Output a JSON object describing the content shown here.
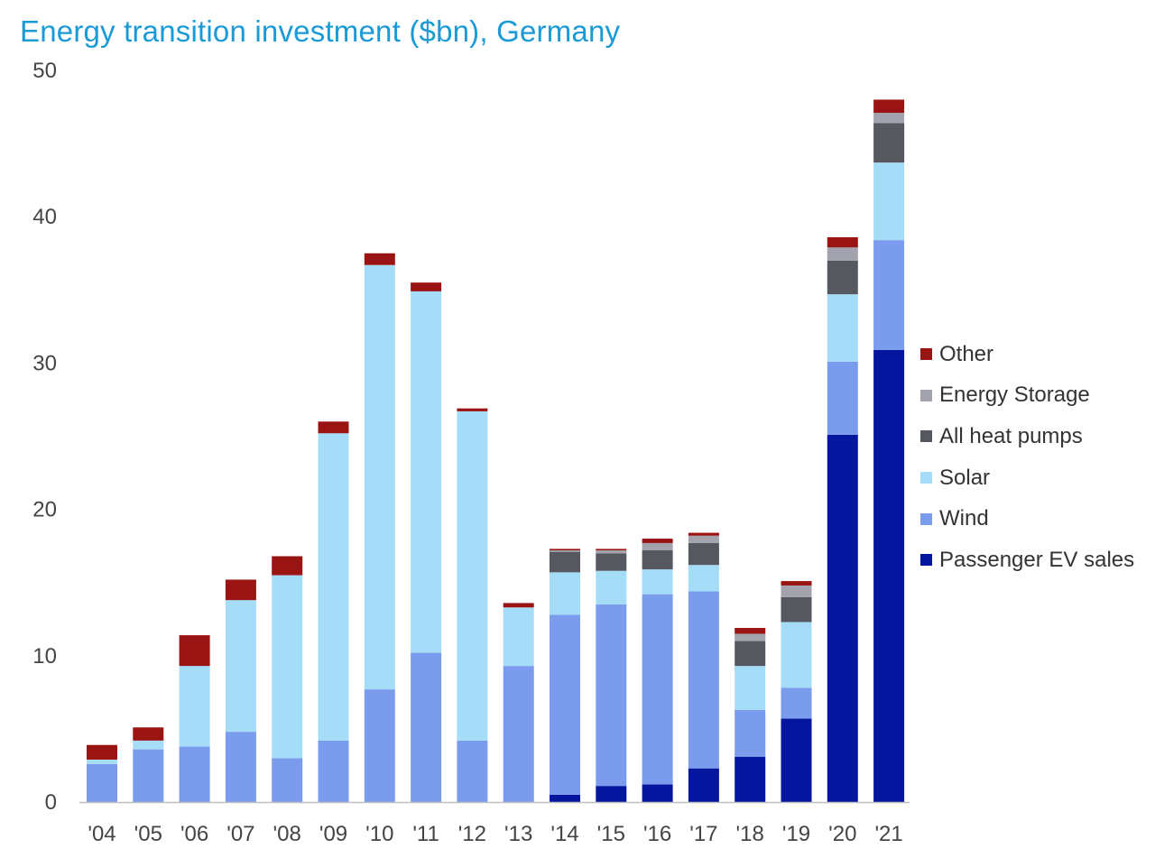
{
  "chart_data": {
    "type": "bar",
    "stacked": true,
    "title": "Energy transition investment ($bn), Germany",
    "xlabel": "",
    "ylabel": "",
    "ylim": [
      0,
      50
    ],
    "yticks": [
      0,
      10,
      20,
      30,
      40,
      50
    ],
    "grid": false,
    "legend_position": "right",
    "categories": [
      "'04",
      "'05",
      "'06",
      "'07",
      "'08",
      "'09",
      "'10",
      "'11",
      "'12",
      "'13",
      "'14",
      "'15",
      "'16",
      "'17",
      "'18",
      "'19",
      "'20",
      "'21"
    ],
    "series": [
      {
        "name": "Passenger EV sales",
        "color": "#04169E",
        "values": [
          0,
          0,
          0,
          0,
          0,
          0,
          0,
          0,
          0,
          0,
          0.5,
          1.1,
          1.2,
          2.3,
          3.1,
          5.7,
          25.1,
          30.9
        ]
      },
      {
        "name": "Wind",
        "color": "#7B9CEC",
        "values": [
          2.6,
          3.6,
          3.8,
          4.8,
          3.0,
          4.2,
          7.7,
          10.2,
          4.2,
          9.3,
          12.3,
          12.4,
          13.0,
          12.1,
          3.2,
          2.1,
          5.0,
          7.5
        ]
      },
      {
        "name": "Solar",
        "color": "#A5DCF8",
        "values": [
          0.3,
          0.6,
          5.5,
          9.0,
          12.5,
          21.0,
          29.0,
          24.7,
          22.5,
          4.0,
          2.9,
          2.3,
          1.7,
          1.8,
          3.0,
          4.5,
          4.6,
          5.3
        ]
      },
      {
        "name": "All heat pumps",
        "color": "#56585F",
        "values": [
          0,
          0,
          0,
          0,
          0,
          0,
          0,
          0,
          0,
          0,
          1.4,
          1.2,
          1.3,
          1.5,
          1.7,
          1.7,
          2.3,
          2.7
        ]
      },
      {
        "name": "Energy Storage",
        "color": "#A3A3AE",
        "values": [
          0,
          0,
          0,
          0,
          0,
          0,
          0,
          0,
          0,
          0,
          0.1,
          0.2,
          0.5,
          0.5,
          0.5,
          0.8,
          0.9,
          0.7
        ]
      },
      {
        "name": "Other",
        "color": "#9B1414",
        "values": [
          1.0,
          0.9,
          2.1,
          1.4,
          1.3,
          0.8,
          0.8,
          0.6,
          0.2,
          0.3,
          0.1,
          0.1,
          0.3,
          0.2,
          0.4,
          0.3,
          0.7,
          0.9
        ]
      }
    ],
    "legend_order": [
      "Other",
      "Energy Storage",
      "All heat pumps",
      "Solar",
      "Wind",
      "Passenger EV sales"
    ],
    "colors": {
      "title": "#1A9AD6",
      "axis": "#BFBFBF",
      "tick_text": "#444444"
    }
  }
}
